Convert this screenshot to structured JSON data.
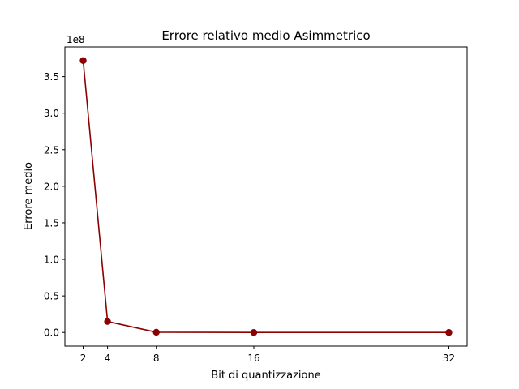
{
  "chart_data": {
    "type": "line",
    "title": "Errore relativo medio Asimmetrico",
    "xlabel": "Bit di quantizzazione",
    "ylabel": "Errore medio",
    "y_offset_label": "1e8",
    "x": [
      2,
      4,
      8,
      16,
      32
    ],
    "series": [
      {
        "values": [
          372000000,
          15000000,
          300000,
          10000,
          1000
        ],
        "color": "#8b0000"
      }
    ],
    "x_ticks": [
      2,
      4,
      8,
      16,
      32
    ],
    "y_ticks": [
      0,
      50000000,
      100000000,
      150000000,
      200000000,
      250000000,
      300000000,
      350000000
    ],
    "y_tick_labels": [
      "0.0",
      "0.5",
      "1.0",
      "1.5",
      "2.0",
      "2.5",
      "3.0",
      "3.5"
    ],
    "xlim": [
      0.5,
      33.5
    ],
    "ylim": [
      -18600000,
      390600000
    ],
    "grid": false,
    "marker": "circle"
  }
}
